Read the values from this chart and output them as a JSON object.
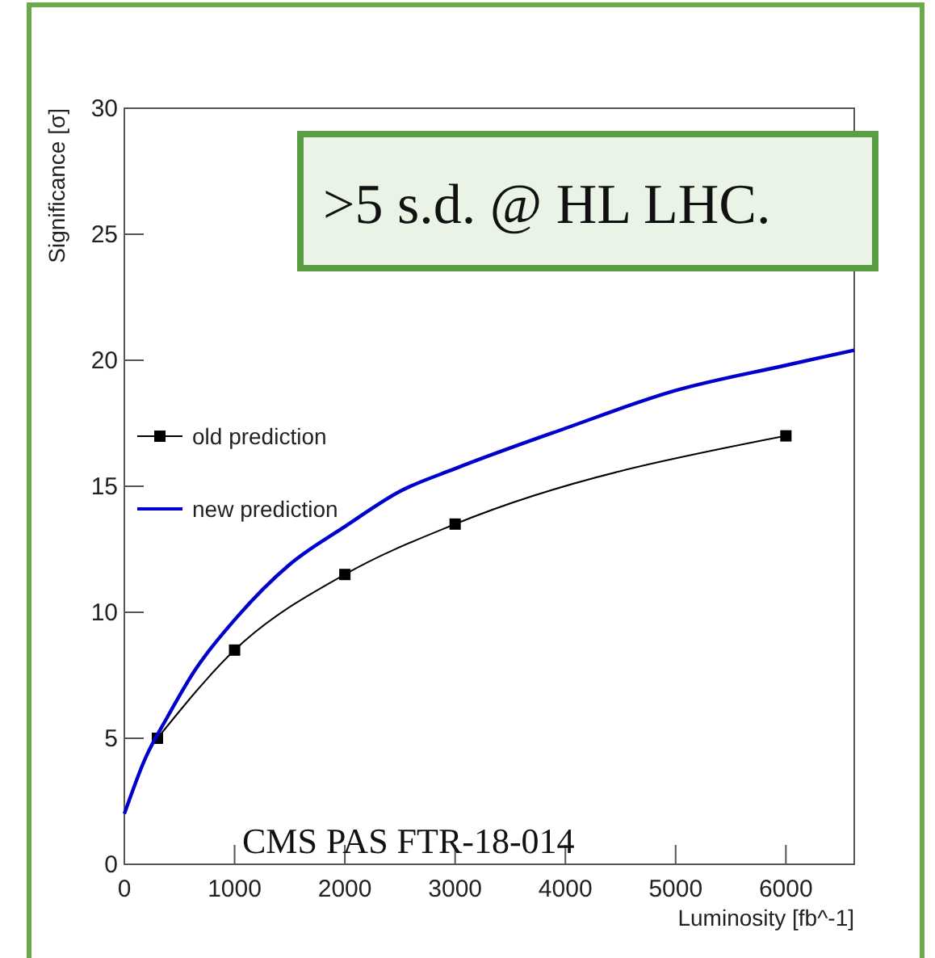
{
  "chart_data": {
    "type": "line",
    "xlabel": "Luminosity [fb^-1]",
    "ylabel": "Significance [σ]",
    "xlim": [
      0,
      6620
    ],
    "xticks": [
      0,
      1000,
      2000,
      3000,
      4000,
      5000,
      6000
    ],
    "ylim": [
      0,
      30
    ],
    "yticks": [
      0,
      5,
      10,
      15,
      20,
      25,
      30
    ],
    "grid": false,
    "legend": "left",
    "series": [
      {
        "name": "old prediction",
        "color": "#000000",
        "marker": "square",
        "x": [
          300,
          1000,
          2000,
          3000,
          6000
        ],
        "values": [
          5,
          8.5,
          11.5,
          13.5,
          17
        ]
      },
      {
        "name": "new prediction",
        "color": "#0000cc",
        "marker": "none",
        "x": [
          0,
          190,
          385,
          640,
          1000,
          1500,
          2000,
          2500,
          3000,
          4000,
          5000,
          6000,
          6620
        ],
        "values": [
          2,
          4.2,
          5.8,
          7.7,
          9.7,
          11.9,
          13.4,
          14.8,
          15.7,
          17.3,
          18.8,
          19.8,
          20.4
        ]
      }
    ],
    "annotations": [
      ">5 s.d. @  HL LHC.",
      "CMS PAS FTR-18-014"
    ]
  }
}
